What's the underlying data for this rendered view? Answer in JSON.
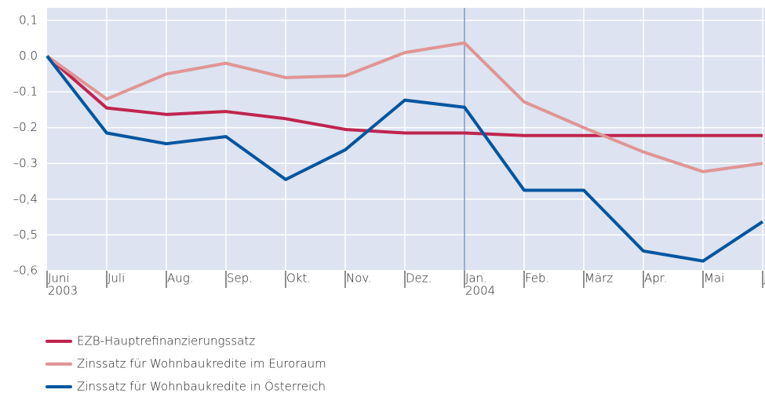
{
  "chart_data": {
    "type": "line",
    "categories": [
      [
        "Juni",
        "2003"
      ],
      "Juli",
      "Aug.",
      "Sep.",
      "Okt.",
      "Nov.",
      "Dez.",
      [
        "Jan.",
        "2004"
      ],
      "Feb.",
      "März",
      "Apr.",
      "Mai",
      "Juni"
    ],
    "series": [
      {
        "name": "EZB-Hauptrefinanzierungssatz",
        "color": "#c0244f",
        "values": [
          0,
          -0.145,
          -0.163,
          -0.155,
          -0.175,
          -0.205,
          -0.215,
          -0.215,
          -0.222,
          -0.222,
          -0.222,
          -0.222,
          -0.222
        ]
      },
      {
        "name": "Zinssatz für Wohnbaukredite im Euroraum",
        "color": "#e09595",
        "values": [
          0,
          -0.12,
          -0.05,
          -0.02,
          -0.06,
          -0.055,
          0.01,
          0.037,
          -0.128,
          -0.2,
          -0.268,
          -0.323,
          -0.3
        ]
      },
      {
        "name": "Zinssatz für Wohnbaukredite in Österreich",
        "color": "#0056a0",
        "values": [
          0,
          -0.215,
          -0.245,
          -0.225,
          -0.345,
          -0.262,
          -0.123,
          -0.143,
          -0.375,
          -0.375,
          -0.545,
          -0.573,
          -0.463
        ]
      }
    ],
    "ylim": [
      -0.6,
      0.135
    ],
    "yticks": [
      {
        "value": 0.1,
        "label": "0,1"
      },
      {
        "value": 0,
        "label": "0.0"
      },
      {
        "value": -0.1,
        "label": "–0.1"
      },
      {
        "value": -0.2,
        "label": "–0.2"
      },
      {
        "value": -0.3,
        "label": "–0.3"
      },
      {
        "value": -0.4,
        "label": "–0,4"
      },
      {
        "value": -0.5,
        "label": "–0,5"
      },
      {
        "value": -0.6,
        "label": "–0,6"
      }
    ],
    "grid": true,
    "vline_at": 7,
    "vline_color": "#5b7fc0",
    "background": "#dde3f0"
  }
}
